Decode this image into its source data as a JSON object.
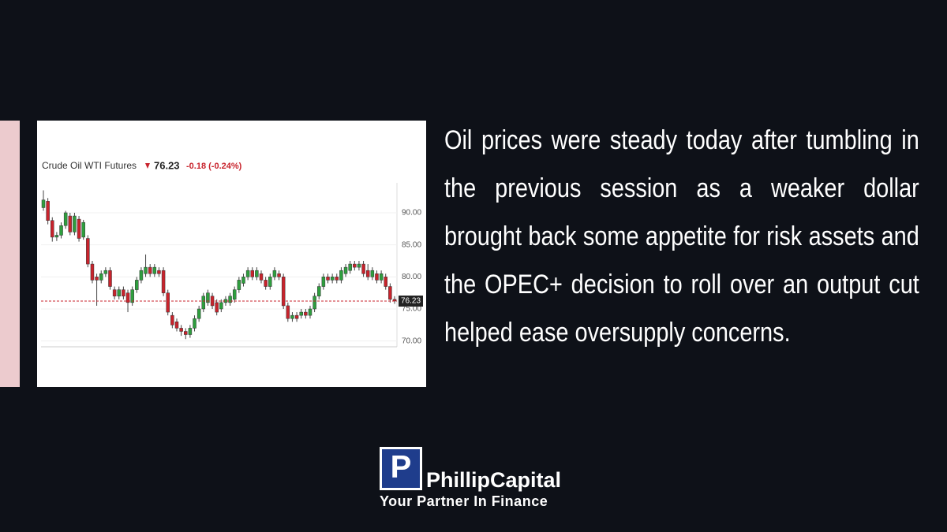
{
  "chart_data": {
    "type": "candlestick",
    "title": "Crude Oil WTI Futures",
    "last_price": 76.23,
    "change": "-0.18 (-0.24%)",
    "up_color": "#2e9e3e",
    "down_color": "#c8232c",
    "ylim": [
      69.1,
      94.3
    ],
    "yticks": [
      {
        "value": 70,
        "label": "70.00"
      },
      {
        "value": 75,
        "label": "75.00"
      },
      {
        "value": 80,
        "label": "80.00"
      },
      {
        "value": 85,
        "label": "85.00"
      },
      {
        "value": 90,
        "label": "90.00"
      }
    ],
    "grid": true,
    "candles": [
      [
        90.8,
        93.5,
        90.3,
        92.0
      ],
      [
        91.8,
        92.3,
        88.2,
        88.8
      ],
      [
        88.8,
        89.3,
        85.5,
        86.2
      ],
      [
        86.2,
        87.0,
        85.6,
        86.5
      ],
      [
        86.5,
        88.5,
        86.0,
        88.0
      ],
      [
        88.0,
        90.3,
        87.5,
        90.0
      ],
      [
        89.5,
        90.0,
        86.5,
        87.0
      ],
      [
        87.0,
        90.0,
        86.5,
        89.5
      ],
      [
        89.0,
        89.5,
        85.5,
        86.0
      ],
      [
        86.2,
        88.9,
        85.8,
        88.5
      ],
      [
        86.0,
        86.5,
        81.5,
        82.0
      ],
      [
        82.0,
        82.5,
        79.0,
        79.5
      ],
      [
        80.0,
        80.5,
        75.5,
        79.5
      ],
      [
        79.5,
        81.0,
        79.0,
        80.5
      ],
      [
        80.5,
        81.5,
        80.0,
        81.0
      ],
      [
        81.0,
        81.5,
        78.0,
        78.5
      ],
      [
        78.0,
        78.5,
        76.5,
        77.0
      ],
      [
        77.0,
        78.5,
        76.5,
        78.0
      ],
      [
        78.0,
        78.5,
        76.5,
        77.0
      ],
      [
        77.5,
        78.0,
        74.5,
        76.0
      ],
      [
        76.0,
        78.5,
        75.5,
        78.0
      ],
      [
        78.0,
        80.0,
        77.5,
        79.5
      ],
      [
        79.5,
        81.5,
        79.0,
        81.0
      ],
      [
        80.5,
        83.5,
        80.0,
        81.5
      ],
      [
        81.5,
        82.0,
        80.0,
        80.5
      ],
      [
        80.5,
        82.0,
        80.0,
        81.5
      ],
      [
        81.0,
        81.5,
        80.0,
        80.5
      ],
      [
        81.0,
        81.5,
        77.0,
        77.5
      ],
      [
        77.5,
        78.0,
        74.0,
        74.5
      ],
      [
        74.0,
        74.5,
        72.0,
        72.5
      ],
      [
        73.0,
        73.5,
        71.5,
        72.0
      ],
      [
        72.0,
        72.5,
        70.8,
        71.5
      ],
      [
        71.5,
        72.0,
        70.3,
        71.0
      ],
      [
        71.0,
        72.5,
        70.5,
        72.0
      ],
      [
        72.0,
        74.0,
        71.5,
        73.5
      ],
      [
        73.5,
        75.5,
        73.0,
        75.0
      ],
      [
        75.0,
        77.5,
        74.5,
        77.0
      ],
      [
        76.0,
        78.0,
        75.5,
        77.5
      ],
      [
        77.0,
        77.5,
        75.0,
        75.5
      ],
      [
        76.0,
        76.5,
        74.0,
        74.5
      ],
      [
        75.0,
        76.5,
        74.5,
        76.0
      ],
      [
        76.0,
        77.0,
        75.5,
        76.5
      ],
      [
        76.0,
        77.5,
        75.5,
        77.0
      ],
      [
        76.5,
        78.5,
        76.0,
        78.0
      ],
      [
        78.0,
        80.0,
        77.5,
        79.5
      ],
      [
        79.0,
        80.5,
        78.5,
        80.0
      ],
      [
        80.0,
        81.5,
        79.5,
        81.0
      ],
      [
        81.0,
        81.5,
        79.5,
        80.0
      ],
      [
        80.0,
        81.5,
        79.5,
        81.0
      ],
      [
        80.5,
        81.0,
        79.0,
        79.5
      ],
      [
        79.5,
        80.0,
        78.0,
        78.5
      ],
      [
        78.5,
        80.5,
        78.0,
        80.0
      ],
      [
        80.0,
        81.5,
        79.5,
        81.0
      ],
      [
        80.5,
        81.0,
        79.5,
        80.0
      ],
      [
        80.0,
        80.5,
        75.0,
        75.5
      ],
      [
        75.5,
        76.0,
        73.0,
        73.5
      ],
      [
        73.5,
        74.5,
        73.0,
        74.0
      ],
      [
        74.0,
        74.5,
        73.0,
        73.5
      ],
      [
        74.0,
        75.0,
        73.5,
        74.5
      ],
      [
        74.5,
        75.0,
        73.5,
        74.0
      ],
      [
        74.0,
        75.5,
        73.5,
        75.0
      ],
      [
        75.0,
        77.5,
        74.5,
        77.0
      ],
      [
        77.0,
        79.0,
        76.5,
        78.5
      ],
      [
        78.5,
        80.5,
        78.0,
        80.0
      ],
      [
        80.0,
        80.5,
        79.0,
        79.5
      ],
      [
        79.5,
        80.5,
        79.0,
        80.0
      ],
      [
        80.0,
        80.5,
        79.0,
        79.5
      ],
      [
        79.5,
        81.5,
        79.0,
        81.0
      ],
      [
        80.5,
        82.0,
        80.0,
        81.5
      ],
      [
        81.0,
        82.5,
        80.5,
        82.0
      ],
      [
        82.0,
        82.5,
        81.0,
        81.5
      ],
      [
        81.5,
        82.5,
        81.0,
        82.0
      ],
      [
        82.0,
        82.5,
        80.0,
        80.5
      ],
      [
        81.0,
        82.0,
        79.5,
        80.0
      ],
      [
        80.0,
        81.5,
        79.5,
        81.0
      ],
      [
        80.5,
        81.0,
        79.0,
        79.5
      ],
      [
        79.5,
        81.0,
        79.0,
        80.5
      ],
      [
        80.0,
        80.5,
        78.0,
        78.5
      ],
      [
        78.5,
        79.0,
        76.0,
        76.5
      ],
      [
        76.5,
        77.0,
        75.8,
        76.23
      ]
    ]
  },
  "article": {
    "text": "Oil prices were steady today after tumbling in the previous session as a weaker dollar brought back some appetite for risk assets and the OPEC+ decision to roll over an output cut helped ease oversupply concerns."
  },
  "logo": {
    "name": "PhillipCapital",
    "tagline": "Your Partner In Finance",
    "mark": "P"
  }
}
